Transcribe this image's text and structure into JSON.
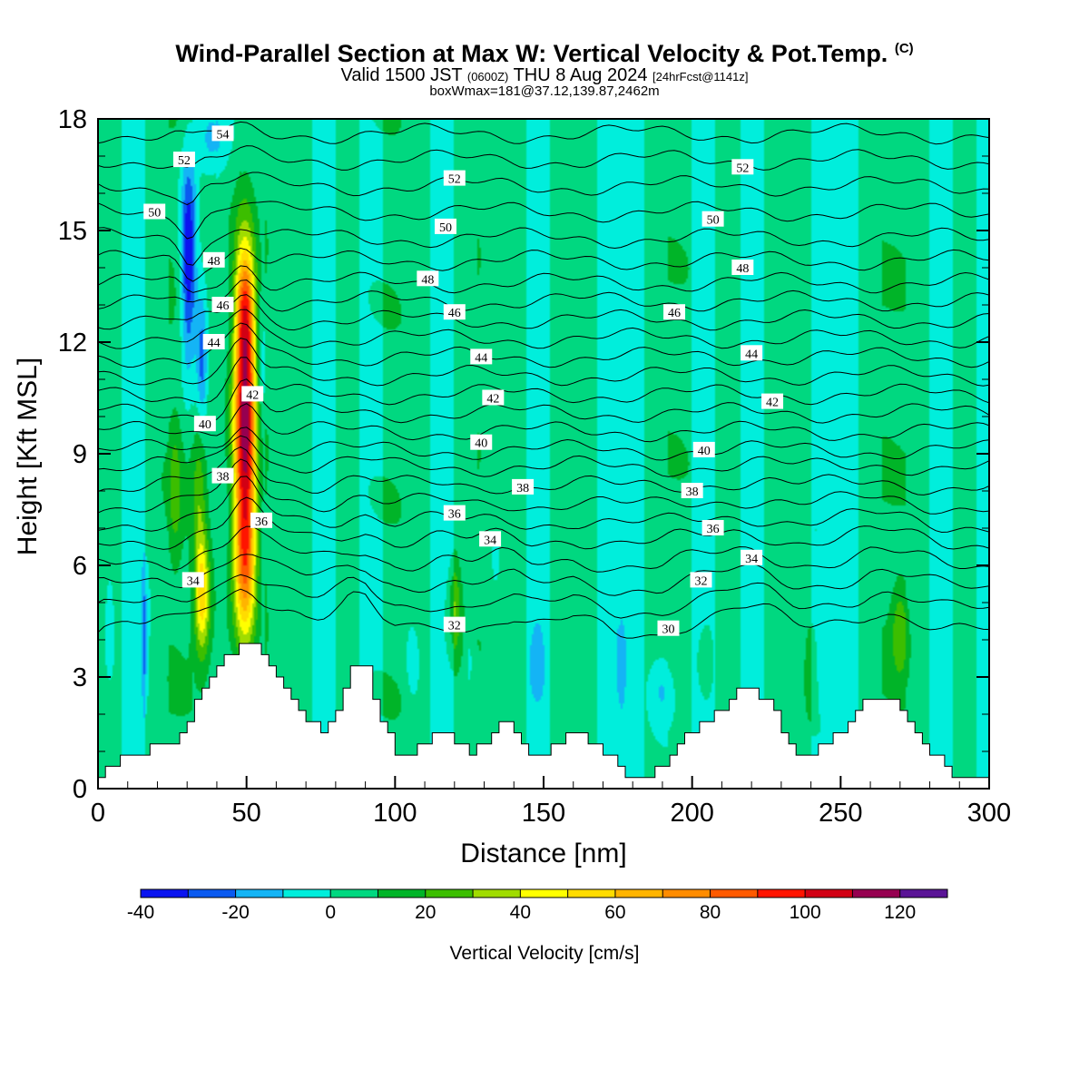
{
  "header": {
    "title": "Wind-Parallel Section at Max W: Vertical Velocity & Pot.Temp.",
    "title_mark": "(C)",
    "subtitle_a": "Valid 1500 JST",
    "subtitle_b": "(0600Z)",
    "subtitle_c": "THU 8 Aug 2024",
    "subtitle_d": "[24hrFcst@1141z]",
    "subtitle2": "boxWmax=181@37.12,139.87,2462m"
  },
  "chart_data": {
    "type": "heatmap",
    "xlabel": "Distance [nm]",
    "ylabel": "Height [Kft MSL]",
    "xlim": [
      0,
      300
    ],
    "ylim": [
      0,
      18
    ],
    "x_ticks": [
      0,
      50,
      100,
      150,
      200,
      250,
      300
    ],
    "x_tick_labels": [
      "0",
      "50",
      "100",
      "150",
      "200",
      "250",
      "300"
    ],
    "y_ticks": [
      0,
      3,
      6,
      9,
      12,
      15,
      18
    ],
    "y_tick_labels": [
      "0",
      "3",
      "6",
      "9",
      "12",
      "15",
      "18"
    ],
    "colorbar": {
      "label": "Vertical Velocity [cm/s]",
      "bounds": [
        -40,
        130
      ],
      "step": 10,
      "tick_values": [
        -40,
        -20,
        0,
        20,
        40,
        60,
        80,
        100,
        120
      ],
      "tick_labels": [
        "-40",
        "-20",
        "0",
        "20",
        "40",
        "60",
        "80",
        "100",
        "120"
      ],
      "colors": [
        "#0a14f0",
        "#0a5af0",
        "#14b4f5",
        "#00eedc",
        "#00d880",
        "#00b428",
        "#3cbe00",
        "#a0dc00",
        "#ffff00",
        "#ffdc00",
        "#ffb400",
        "#ff8c00",
        "#ff5a00",
        "#ff1400",
        "#d20014",
        "#960050",
        "#5a1496"
      ]
    },
    "terrain": {
      "x": [
        0,
        2,
        5,
        10,
        15,
        20,
        25,
        28,
        30,
        33,
        36,
        40,
        45,
        48,
        52,
        55,
        58,
        60,
        62,
        65,
        70,
        75,
        78,
        82,
        85,
        90,
        93,
        96,
        100,
        105,
        110,
        115,
        120,
        125,
        130,
        135,
        140,
        145,
        150,
        155,
        160,
        165,
        170,
        175,
        178,
        185,
        190,
        195,
        200,
        205,
        210,
        215,
        220,
        225,
        230,
        235,
        240,
        245,
        250,
        255,
        260,
        265,
        270,
        275,
        280,
        285,
        290,
        295,
        300
      ],
      "height": [
        0.4,
        0.7,
        0.7,
        1.0,
        1.0,
        1.3,
        1.3,
        1.6,
        1.9,
        2.5,
        3.0,
        3.3,
        3.6,
        3.9,
        3.9,
        3.6,
        3.3,
        3.0,
        2.7,
        2.4,
        1.8,
        1.6,
        1.9,
        2.5,
        3.2,
        3.2,
        2.4,
        1.6,
        1.0,
        1.0,
        1.3,
        1.6,
        1.3,
        0.8,
        1.3,
        1.8,
        1.6,
        0.8,
        1.0,
        1.3,
        1.6,
        1.3,
        1.0,
        0.5,
        0.3,
        0.3,
        0.6,
        1.2,
        1.5,
        1.8,
        2.2,
        2.6,
        2.6,
        2.3,
        1.6,
        1.0,
        1.0,
        1.3,
        1.6,
        2.0,
        2.5,
        2.5,
        2.1,
        1.6,
        1.0,
        0.5,
        0.3,
        0.3,
        0.3
      ]
    },
    "features": [
      {
        "x": 49.5,
        "y": 10.0,
        "sx": 2.6,
        "sy": 2.9,
        "value": 112
      },
      {
        "x": 49.5,
        "y": 6.0,
        "sx": 2.6,
        "sy": 1.4,
        "value": 45
      },
      {
        "x": 49.5,
        "y": 12.9,
        "sx": 2.0,
        "sy": 1.0,
        "value": 35
      },
      {
        "x": 35.0,
        "y": 5.2,
        "sx": 1.8,
        "sy": 1.1,
        "value": 52
      },
      {
        "x": 34.0,
        "y": 8.0,
        "sx": 1.6,
        "sy": 1.4,
        "value": 20
      },
      {
        "x": 26.0,
        "y": 8.0,
        "sx": 1.6,
        "sy": 1.6,
        "value": 15
      },
      {
        "x": 30.5,
        "y": 14.2,
        "sx": 1.8,
        "sy": 2.0,
        "value": -48
      },
      {
        "x": 35.0,
        "y": 11.6,
        "sx": 1.3,
        "sy": 1.3,
        "value": -30
      },
      {
        "x": 16.0,
        "y": 4.0,
        "sx": 0.9,
        "sy": 1.2,
        "value": -25
      },
      {
        "x": 4.0,
        "y": 4.6,
        "sx": 0.9,
        "sy": 1.0,
        "value": -12
      },
      {
        "x": 38.0,
        "y": 17.5,
        "sx": 3.5,
        "sy": 0.7,
        "value": -18
      },
      {
        "x": 55.0,
        "y": 11.0,
        "sx": 1.2,
        "sy": 1.2,
        "value": -12
      },
      {
        "x": 190.0,
        "y": 2.7,
        "sx": 3.5,
        "sy": 0.7,
        "value": -16
      },
      {
        "x": 134.0,
        "y": 6.2,
        "sx": 1.2,
        "sy": 0.6,
        "value": -14
      },
      {
        "x": 106.0,
        "y": 3.3,
        "sx": 1.4,
        "sy": 0.6,
        "value": -12
      },
      {
        "x": 148.0,
        "y": 3.6,
        "sx": 1.5,
        "sy": 0.8,
        "value": -12
      },
      {
        "x": 176.0,
        "y": 3.0,
        "sx": 1.2,
        "sy": 0.8,
        "value": -11
      },
      {
        "x": 125.0,
        "y": 3.5,
        "sx": 1.2,
        "sy": 0.7,
        "value": -10
      },
      {
        "x": 120.0,
        "y": 5.0,
        "sx": 1.5,
        "sy": 1.0,
        "value": 22
      },
      {
        "x": 270.0,
        "y": 4.3,
        "sx": 2.0,
        "sy": 0.9,
        "value": 20
      },
      {
        "x": 240.0,
        "y": 3.6,
        "sx": 1.6,
        "sy": 0.8,
        "value": 14
      },
      {
        "x": 205.0,
        "y": 3.4,
        "sx": 1.5,
        "sy": 0.6,
        "value": 12
      }
    ],
    "background_columns": [
      {
        "x0": 0,
        "x1": 8,
        "value": 5
      },
      {
        "x0": 8,
        "x1": 16,
        "value": -5
      },
      {
        "x0": 16,
        "x1": 24,
        "value": 6
      },
      {
        "x0": 24,
        "x1": 32,
        "value": 8
      },
      {
        "x0": 32,
        "x1": 40,
        "value": 6
      },
      {
        "x0": 40,
        "x1": 48,
        "value": 4
      },
      {
        "x0": 48,
        "x1": 56,
        "value": 3
      },
      {
        "x0": 56,
        "x1": 64,
        "value": 8
      },
      {
        "x0": 64,
        "x1": 72,
        "value": 6
      },
      {
        "x0": 72,
        "x1": 80,
        "value": -4
      },
      {
        "x0": 80,
        "x1": 88,
        "value": 6
      },
      {
        "x0": 88,
        "x1": 96,
        "value": -3
      },
      {
        "x0": 96,
        "x1": 104,
        "value": 7
      },
      {
        "x0": 104,
        "x1": 112,
        "value": 4
      },
      {
        "x0": 112,
        "x1": 120,
        "value": -5
      },
      {
        "x0": 120,
        "x1": 128,
        "value": 6
      },
      {
        "x0": 128,
        "x1": 136,
        "value": 8
      },
      {
        "x0": 136,
        "x1": 144,
        "value": 5
      },
      {
        "x0": 144,
        "x1": 152,
        "value": -4
      },
      {
        "x0": 152,
        "x1": 160,
        "value": 6
      },
      {
        "x0": 160,
        "x1": 168,
        "value": 4
      },
      {
        "x0": 168,
        "x1": 176,
        "value": -5
      },
      {
        "x0": 176,
        "x1": 184,
        "value": -6
      },
      {
        "x0": 184,
        "x1": 192,
        "value": 5
      },
      {
        "x0": 192,
        "x1": 200,
        "value": 7
      },
      {
        "x0": 200,
        "x1": 208,
        "value": -3
      },
      {
        "x0": 208,
        "x1": 216,
        "value": 6
      },
      {
        "x0": 216,
        "x1": 224,
        "value": -5
      },
      {
        "x0": 224,
        "x1": 232,
        "value": 7
      },
      {
        "x0": 232,
        "x1": 240,
        "value": 5
      },
      {
        "x0": 240,
        "x1": 248,
        "value": -4
      },
      {
        "x0": 248,
        "x1": 256,
        "value": -5
      },
      {
        "x0": 256,
        "x1": 264,
        "value": 6
      },
      {
        "x0": 264,
        "x1": 272,
        "value": 8
      },
      {
        "x0": 272,
        "x1": 280,
        "value": 5
      },
      {
        "x0": 280,
        "x1": 288,
        "value": -5
      },
      {
        "x0": 288,
        "x1": 296,
        "value": 6
      },
      {
        "x0": 296,
        "x1": 300,
        "value": -4
      }
    ],
    "theta_levels": [
      30,
      31,
      32,
      33,
      34,
      35,
      36,
      37,
      38,
      39,
      40,
      41,
      42,
      43,
      44,
      45,
      46,
      47,
      48,
      49,
      50,
      51,
      52,
      53,
      54
    ],
    "theta_level_heights": [
      4.2,
      4.8,
      5.4,
      6.0,
      6.6,
      7.1,
      7.6,
      8.1,
      8.6,
      9.1,
      9.6,
      10.1,
      10.6,
      11.1,
      11.6,
      12.1,
      12.6,
      13.1,
      13.6,
      14.2,
      14.8,
      15.5,
      16.2,
      16.9,
      17.6
    ],
    "theta_labels": [
      {
        "text": "54",
        "x": 42,
        "y": 17.6
      },
      {
        "text": "52",
        "x": 29,
        "y": 16.9
      },
      {
        "text": "50",
        "x": 19,
        "y": 15.5
      },
      {
        "text": "48",
        "x": 39,
        "y": 14.2
      },
      {
        "text": "46",
        "x": 42,
        "y": 13.0
      },
      {
        "text": "44",
        "x": 39,
        "y": 12.0
      },
      {
        "text": "42",
        "x": 52,
        "y": 10.6
      },
      {
        "text": "40",
        "x": 36,
        "y": 9.8
      },
      {
        "text": "38",
        "x": 42,
        "y": 8.4
      },
      {
        "text": "36",
        "x": 55,
        "y": 7.2
      },
      {
        "text": "34",
        "x": 32,
        "y": 5.6
      },
      {
        "text": "52",
        "x": 120,
        "y": 16.4
      },
      {
        "text": "50",
        "x": 117,
        "y": 15.1
      },
      {
        "text": "48",
        "x": 111,
        "y": 13.7
      },
      {
        "text": "46",
        "x": 120,
        "y": 12.8
      },
      {
        "text": "44",
        "x": 129,
        "y": 11.6
      },
      {
        "text": "42",
        "x": 133,
        "y": 10.5
      },
      {
        "text": "40",
        "x": 129,
        "y": 9.3
      },
      {
        "text": "38",
        "x": 143,
        "y": 8.1
      },
      {
        "text": "36",
        "x": 120,
        "y": 7.4
      },
      {
        "text": "34",
        "x": 132,
        "y": 6.7
      },
      {
        "text": "32",
        "x": 120,
        "y": 4.4
      },
      {
        "text": "52",
        "x": 217,
        "y": 16.7
      },
      {
        "text": "50",
        "x": 207,
        "y": 15.3
      },
      {
        "text": "48",
        "x": 217,
        "y": 14.0
      },
      {
        "text": "46",
        "x": 194,
        "y": 12.8
      },
      {
        "text": "44",
        "x": 220,
        "y": 11.7
      },
      {
        "text": "42",
        "x": 227,
        "y": 10.4
      },
      {
        "text": "40",
        "x": 204,
        "y": 9.1
      },
      {
        "text": "38",
        "x": 200,
        "y": 8.0
      },
      {
        "text": "36",
        "x": 207,
        "y": 7.0
      },
      {
        "text": "34",
        "x": 220,
        "y": 6.2
      },
      {
        "text": "32",
        "x": 203,
        "y": 5.6
      },
      {
        "text": "30",
        "x": 192,
        "y": 4.3
      }
    ]
  }
}
